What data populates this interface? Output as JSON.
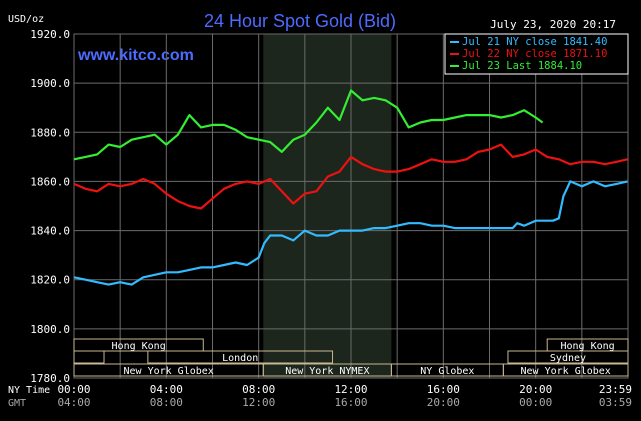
{
  "chart_data": {
    "type": "line",
    "title": "24 Hour Spot Gold (Bid)",
    "site": "www.kitco.com",
    "timestamp": "July 23, 2020 20:17",
    "y_unit": "USD/oz",
    "ylim": [
      1780,
      1920
    ],
    "y_ticks": [
      "1920.0",
      "1900.0",
      "1880.0",
      "1860.0",
      "1840.0",
      "1820.0",
      "1800.0",
      "1780.0"
    ],
    "x_row_labels": [
      "NY Time",
      "GMT"
    ],
    "x_ticks_ny": [
      "00:00",
      "04:00",
      "08:00",
      "12:00",
      "16:00",
      "20:00",
      "23:59"
    ],
    "x_ticks_gmt": [
      "04:00",
      "08:00",
      "12:00",
      "16:00",
      "20:00",
      "00:00",
      "03:59"
    ],
    "grid": true,
    "legend_position": "top-right",
    "colors": {
      "background": "#000000",
      "grid": "#6b6b6b",
      "nymex_shade": "#1c261c",
      "title": "#4d6bff",
      "axis_text": "#ffffff",
      "session_border": "#c9b891"
    },
    "sessions": [
      {
        "name": "Hong Kong",
        "row": 1
      },
      {
        "name": "London",
        "row": 2
      },
      {
        "name": "New York Globex",
        "row": 3
      },
      {
        "name": "New York NYMEX",
        "row": 3
      },
      {
        "name": "NY Globex",
        "row": 3
      },
      {
        "name": "Sydney",
        "row": 2
      },
      {
        "name": "Hong Kong",
        "row": 1
      },
      {
        "name": "New York Globex",
        "row": 3
      }
    ],
    "series": [
      {
        "name": "Jul 21 NY close 1841.40",
        "color": "#33bbff",
        "x_hours": [
          0,
          0.5,
          1,
          1.5,
          2,
          2.5,
          3,
          3.5,
          4,
          4.5,
          5,
          5.5,
          6,
          6.5,
          7,
          7.5,
          8,
          8.25,
          8.5,
          9,
          9.5,
          10,
          10.5,
          11,
          11.5,
          12,
          12.5,
          13,
          13.5,
          14,
          14.5,
          15,
          15.5,
          16,
          16.5,
          17,
          17.5,
          18,
          18.5,
          19,
          19.2,
          19.5,
          20,
          20.5,
          20.75,
          21,
          21.2,
          21.5,
          22,
          22.5,
          23,
          23.5,
          23.98
        ],
        "values": [
          1821,
          1820,
          1819,
          1818,
          1819,
          1818,
          1821,
          1822,
          1823,
          1823,
          1824,
          1825,
          1825,
          1826,
          1827,
          1826,
          1829,
          1835,
          1838,
          1838,
          1836,
          1840,
          1838,
          1838,
          1840,
          1840,
          1840,
          1841,
          1841,
          1842,
          1843,
          1843,
          1842,
          1842,
          1841,
          1841,
          1841,
          1841,
          1841,
          1841,
          1843,
          1842,
          1844,
          1844,
          1844,
          1845,
          1854,
          1860,
          1858,
          1860,
          1858,
          1859,
          1860
        ]
      },
      {
        "name": "Jul 22 NY close 1871.10",
        "color": "#ee1111",
        "x_hours": [
          0,
          0.5,
          1,
          1.5,
          2,
          2.5,
          3,
          3.5,
          4,
          4.5,
          5,
          5.5,
          6,
          6.5,
          7,
          7.5,
          8,
          8.5,
          9,
          9.5,
          10,
          10.5,
          11,
          11.5,
          12,
          12.5,
          13,
          13.5,
          14,
          14.5,
          15,
          15.5,
          16,
          16.5,
          17,
          17.5,
          18,
          18.5,
          19,
          19.5,
          20,
          20.5,
          21,
          21.5,
          22,
          22.5,
          23,
          23.5,
          23.98
        ],
        "values": [
          1859,
          1857,
          1856,
          1859,
          1858,
          1859,
          1861,
          1859,
          1855,
          1852,
          1850,
          1849,
          1853,
          1857,
          1859,
          1860,
          1859,
          1861,
          1856,
          1851,
          1855,
          1856,
          1862,
          1864,
          1870,
          1867,
          1865,
          1864,
          1864,
          1865,
          1867,
          1869,
          1868,
          1868,
          1869,
          1872,
          1873,
          1875,
          1870,
          1871,
          1873,
          1870,
          1869,
          1867,
          1868,
          1868,
          1867,
          1868,
          1869
        ]
      },
      {
        "name": "Jul 23 Last 1884.10",
        "color": "#33ee33",
        "x_hours": [
          0,
          0.5,
          1,
          1.5,
          2,
          2.5,
          3,
          3.5,
          4,
          4.5,
          5,
          5.5,
          6,
          6.5,
          7,
          7.5,
          8,
          8.5,
          9,
          9.5,
          10,
          10.5,
          11,
          11.5,
          12,
          12.5,
          13,
          13.5,
          14,
          14.5,
          15,
          15.5,
          16,
          16.5,
          17,
          17.5,
          18,
          18.5,
          19,
          19.5,
          20,
          20.3
        ],
        "values": [
          1869,
          1870,
          1871,
          1875,
          1874,
          1877,
          1878,
          1879,
          1875,
          1879,
          1887,
          1882,
          1883,
          1883,
          1881,
          1878,
          1877,
          1876,
          1872,
          1877,
          1879,
          1884,
          1890,
          1885,
          1897,
          1893,
          1894,
          1893,
          1890,
          1882,
          1884,
          1885,
          1885,
          1886,
          1887,
          1887,
          1887,
          1886,
          1887,
          1889,
          1886,
          1884
        ]
      }
    ]
  }
}
